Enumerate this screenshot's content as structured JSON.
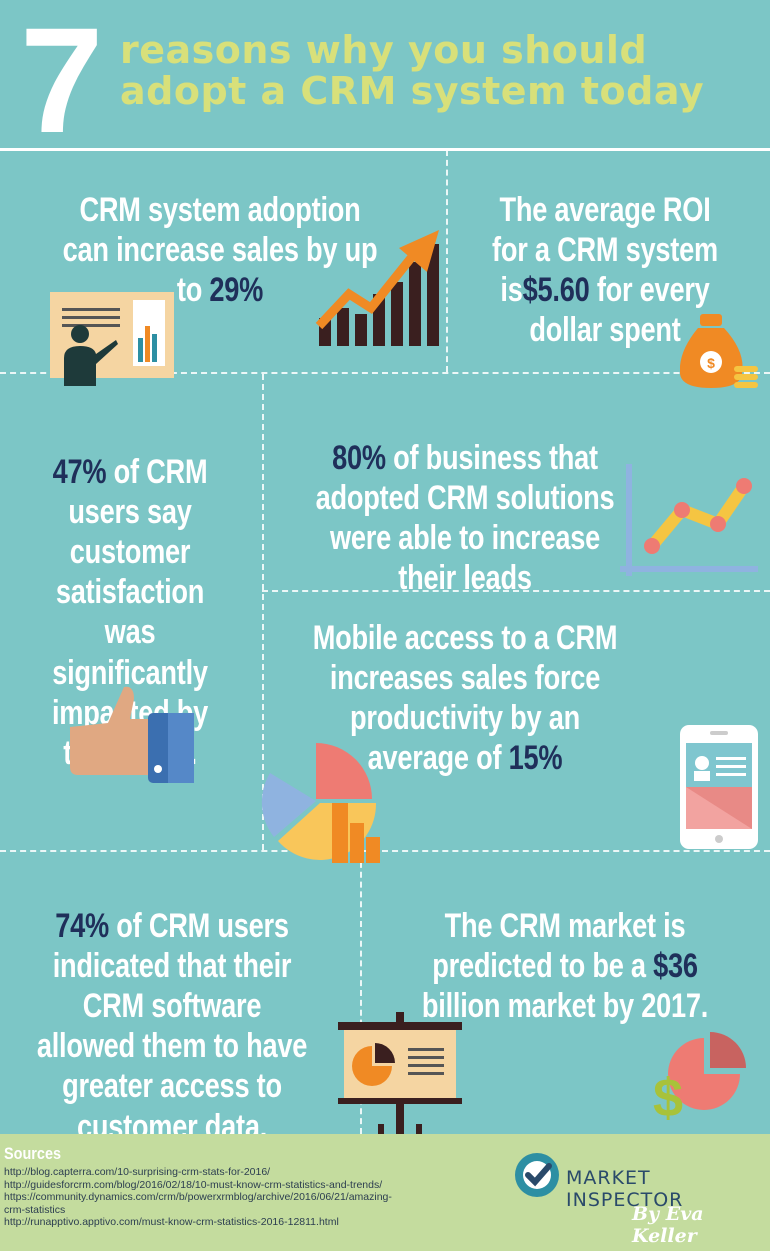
{
  "header": {
    "number": "7",
    "title_line1": "reasons why you should",
    "title_line2": "adopt a CRM system today"
  },
  "facts": [
    {
      "before": "CRM system adoption can increase sales by up to ",
      "highlight": "29%",
      "after": ""
    },
    {
      "before": "The average ROI for a CRM system is",
      "highlight": "$5.60",
      "after": " for every dollar spent"
    },
    {
      "before": "",
      "highlight": "47%",
      "after": " of CRM users say customer satisfaction was significantly impacted by their CRM."
    },
    {
      "before": "",
      "highlight": "80%",
      "after": " of business that adopted CRM solutions were able to increase their leads"
    },
    {
      "before": "Mobile access to a CRM increases sales force productivity by an average of ",
      "highlight": "15%",
      "after": ""
    },
    {
      "before": "",
      "highlight": "74%",
      "after": " of  CRM users indicated that their CRM software allowed them to have greater access to customer data."
    },
    {
      "before": "The CRM market is predicted to be a ",
      "highlight": "$36",
      "after": " billion market by 2017."
    }
  ],
  "sources": {
    "title": "Sources",
    "links": [
      "http://blog.capterra.com/10-surprising-crm-stats-for-2016/",
      "http://guidesforcrm.com/blog/2016/02/18/10-must-know-crm-statistics-and-trends/",
      "https://community.dynamics.com/crm/b/powerxrmblog/archive/2016/06/21/amazing-",
      "crm-statistics",
      "http://runapptivo.apptivo.com/must-know-crm-statistics-2016-12811.html"
    ]
  },
  "brand": {
    "name": "MARKET INSPECTOR",
    "author": "By Eva Keller"
  },
  "icons": [
    "presenter-icon",
    "growth-arrow-icon",
    "money-bag-icon",
    "line-graph-icon",
    "thumbs-up-icon",
    "pie-bar-chart-icon",
    "smartphone-icon",
    "presentation-board-icon",
    "dollar-pie-icon",
    "checkmark-logo-icon"
  ],
  "colors": {
    "background": "#7cc6c6",
    "title": "#d8e07a",
    "highlight": "#1f2f5a",
    "footer": "#c4dc9e",
    "orange": "#f08a24",
    "coral": "#ee7b73"
  }
}
